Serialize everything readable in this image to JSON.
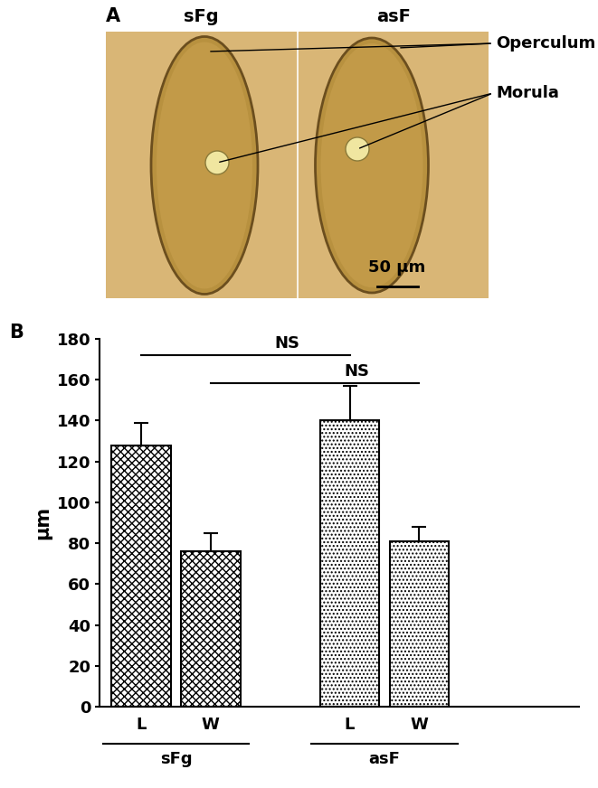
{
  "panel_a": {
    "panel_label": "A",
    "images": [
      {
        "label": "sFg"
      },
      {
        "label": "asF"
      }
    ],
    "annotations": [
      "Operculum",
      "Morula"
    ],
    "scale_bar": "50 µm"
  },
  "chart_data": {
    "type": "bar",
    "panel_label": "B",
    "ylabel": "µm",
    "categories": [
      "L",
      "W",
      null,
      "L",
      "W"
    ],
    "group": [
      "sFg",
      "sFg",
      null,
      "asF",
      "asF"
    ],
    "values": [
      128,
      76,
      null,
      140,
      81
    ],
    "errors": [
      11,
      9,
      null,
      17,
      7
    ],
    "ylim": [
      0,
      180
    ],
    "yticks": [
      0,
      20,
      40,
      60,
      80,
      100,
      120,
      140,
      160,
      180
    ],
    "significance": [
      {
        "text": "NS",
        "between": [
          0,
          3
        ]
      },
      {
        "text": "NS",
        "between": [
          1,
          4
        ]
      }
    ]
  }
}
